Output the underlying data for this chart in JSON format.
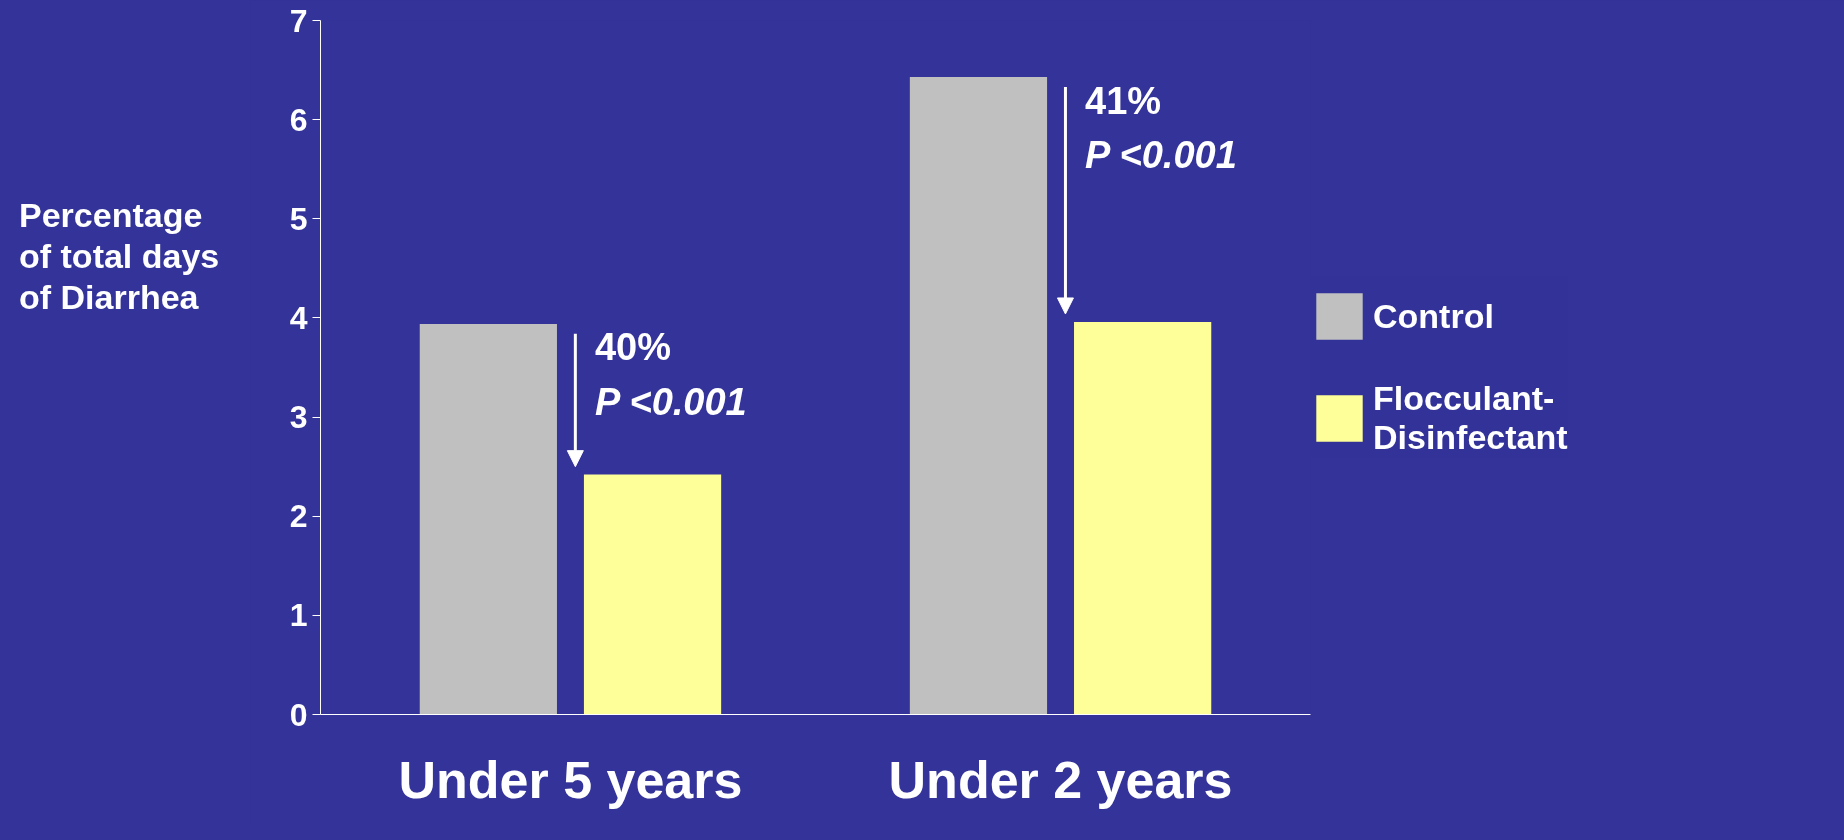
{
  "chart_data": {
    "type": "bar",
    "ylabel": "Percentage\nof total days\nof Diarrhea",
    "categories": [
      "Under 5 years",
      "Under 2 years"
    ],
    "series": [
      {
        "name": "Control",
        "color": "#c0c0c0",
        "values": [
          3.94,
          6.43
        ]
      },
      {
        "name": "Flocculant-\nDisinfectant",
        "color": "#ffff99",
        "values": [
          2.42,
          3.96
        ]
      }
    ],
    "ylim": [
      0,
      7
    ],
    "yticks": [
      0,
      1,
      2,
      3,
      4,
      5,
      6,
      7
    ],
    "grid": false,
    "legend": "right",
    "annotations": [
      "40%",
      "P <0.001",
      "41%",
      "P <0.001"
    ]
  }
}
